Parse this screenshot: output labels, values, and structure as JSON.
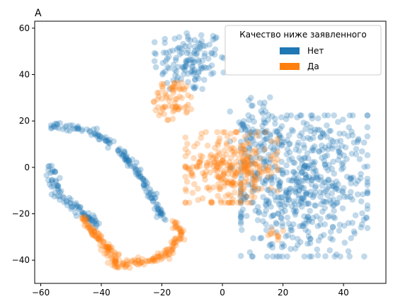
{
  "chart_data": {
    "type": "scatter",
    "title": "A",
    "xlabel": "",
    "ylabel": "",
    "xlim": [
      -62,
      54
    ],
    "ylim": [
      -50,
      63
    ],
    "xticks": [
      -60,
      -40,
      -20,
      0,
      20,
      40
    ],
    "yticks": [
      -40,
      -20,
      0,
      20,
      40,
      60
    ],
    "grid": false,
    "legend": {
      "title": "Качество ниже заявленного",
      "placement": "upper-right",
      "entries": [
        {
          "label": "Нет",
          "color": "#1f77b4"
        },
        {
          "label": "Да",
          "color": "#ff7f0e"
        }
      ]
    },
    "series": [
      {
        "name": "Нет",
        "color": "#1f77b4",
        "clusters": [
          {
            "shape": "blob",
            "center": [
              -11,
              46
            ],
            "spread": [
              6,
              7
            ],
            "n": 130
          },
          {
            "shape": "blob",
            "center": [
              27,
              -8
            ],
            "spread": [
              11,
              16
            ],
            "n": 560
          },
          {
            "shape": "blob",
            "center": [
              12,
              15
            ],
            "spread": [
              5,
              8
            ],
            "n": 80
          },
          {
            "shape": "curve",
            "path": [
              [
                -56,
                18
              ],
              [
                -49,
                17
              ],
              [
                -43,
                16
              ],
              [
                -38,
                12
              ],
              [
                -33,
                5
              ],
              [
                -29,
                0
              ],
              [
                -25,
                -8
              ],
              [
                -21,
                -18
              ],
              [
                -19,
                -23
              ]
            ],
            "n": 150,
            "jitter": 1.2
          },
          {
            "shape": "curve",
            "path": [
              [
                -57,
                0
              ],
              [
                -55,
                -8
              ],
              [
                -52,
                -14
              ],
              [
                -48,
                -18
              ],
              [
                -44,
                -22
              ],
              [
                -41,
                -25
              ]
            ],
            "n": 90,
            "jitter": 1.8
          }
        ]
      },
      {
        "name": "Да",
        "color": "#ff7f0e",
        "clusters": [
          {
            "shape": "blob",
            "center": [
              -16,
              29
            ],
            "spread": [
              3.5,
              4.5
            ],
            "n": 70
          },
          {
            "shape": "blob",
            "center": [
              3,
              0
            ],
            "spread": [
              8,
              8
            ],
            "n": 300
          },
          {
            "shape": "blob",
            "center": [
              18,
              -29
            ],
            "spread": [
              1.5,
              1.5
            ],
            "n": 10
          },
          {
            "shape": "curve",
            "path": [
              [
                -47,
                -21
              ],
              [
                -43,
                -27
              ],
              [
                -39,
                -33
              ],
              [
                -36,
                -38
              ],
              [
                -35,
                -43
              ],
              [
                -30,
                -41
              ],
              [
                -24,
                -40
              ],
              [
                -18,
                -37
              ],
              [
                -15,
                -32
              ],
              [
                -14,
                -27
              ],
              [
                -16,
                -23
              ]
            ],
            "n": 210,
            "jitter": 1.4
          }
        ]
      }
    ]
  }
}
